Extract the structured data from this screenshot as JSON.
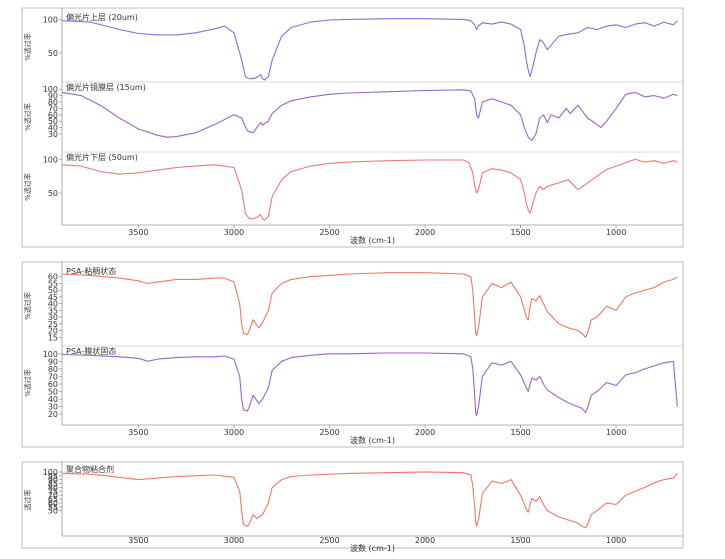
{
  "chart_data": [
    {
      "type": "line",
      "xlabel": "波数 (cm-1)",
      "xticks": [
        3500,
        3000,
        2500,
        2000,
        1500,
        1000
      ],
      "xlim": [
        3900,
        650
      ],
      "panels": [
        {
          "title": "偏光片上层 (20um)",
          "ylabel": "%透过率",
          "color": "#7777dd",
          "ylim": [
            10,
            105
          ],
          "yticks": [
            100,
            50
          ],
          "x": [
            3900,
            3750,
            3600,
            3500,
            3400,
            3300,
            3200,
            3100,
            3050,
            3000,
            2960,
            2940,
            2920,
            2900,
            2880,
            2860,
            2850,
            2840,
            2820,
            2800,
            2750,
            2700,
            2600,
            2500,
            2400,
            2200,
            2000,
            1800,
            1760,
            1740,
            1730,
            1720,
            1700,
            1650,
            1600,
            1550,
            1500,
            1480,
            1470,
            1460,
            1450,
            1440,
            1420,
            1400,
            1380,
            1360,
            1300,
            1250,
            1200,
            1150,
            1100,
            1050,
            1000,
            950,
            900,
            850,
            800,
            750,
            700,
            680
          ],
          "y": [
            98,
            96,
            85,
            79,
            77,
            77,
            80,
            86,
            90,
            80,
            40,
            15,
            12,
            12,
            14,
            18,
            12,
            10,
            15,
            40,
            75,
            88,
            96,
            99,
            100,
            101,
            101,
            100,
            98,
            92,
            85,
            90,
            95,
            93,
            96,
            93,
            85,
            60,
            40,
            25,
            15,
            25,
            50,
            70,
            65,
            55,
            75,
            78,
            80,
            88,
            85,
            90,
            92,
            88,
            93,
            95,
            90,
            96,
            92,
            98
          ]
        },
        {
          "title": "偏光片镜膜层 (15um)",
          "ylabel": "%透过率",
          "color": "#9966cc",
          "ylim": [
            5,
            105
          ],
          "yticks": [
            100,
            90,
            80,
            70,
            60,
            50,
            40,
            30
          ],
          "x": [
            3900,
            3800,
            3700,
            3600,
            3500,
            3400,
            3350,
            3300,
            3200,
            3100,
            3000,
            2960,
            2930,
            2900,
            2880,
            2860,
            2850,
            2820,
            2800,
            2750,
            2700,
            2600,
            2500,
            2400,
            2200,
            2000,
            1800,
            1760,
            1740,
            1730,
            1720,
            1700,
            1650,
            1600,
            1550,
            1500,
            1480,
            1460,
            1440,
            1420,
            1400,
            1380,
            1360,
            1340,
            1300,
            1260,
            1240,
            1200,
            1150,
            1100,
            1080,
            1050,
            1000,
            950,
            900,
            850,
            800,
            750,
            700,
            680
          ],
          "y": [
            95,
            90,
            75,
            55,
            38,
            28,
            25,
            26,
            32,
            45,
            60,
            55,
            35,
            32,
            40,
            48,
            44,
            50,
            62,
            75,
            82,
            88,
            92,
            94,
            96,
            98,
            99,
            97,
            85,
            60,
            55,
            80,
            85,
            80,
            75,
            60,
            40,
            25,
            20,
            30,
            55,
            60,
            48,
            60,
            55,
            70,
            62,
            75,
            55,
            45,
            40,
            50,
            70,
            92,
            95,
            88,
            90,
            86,
            92,
            90
          ]
        },
        {
          "title": "偏光片下层 (50um)",
          "ylabel": "%透过率",
          "color": "#ee7777",
          "ylim": [
            10,
            105
          ],
          "yticks": [
            100,
            50
          ],
          "x": [
            3900,
            3800,
            3700,
            3600,
            3500,
            3400,
            3300,
            3200,
            3100,
            3000,
            2960,
            2940,
            2920,
            2900,
            2880,
            2860,
            2850,
            2840,
            2820,
            2800,
            2750,
            2700,
            2600,
            2500,
            2400,
            2200,
            2000,
            1800,
            1770,
            1750,
            1740,
            1730,
            1720,
            1700,
            1650,
            1600,
            1550,
            1500,
            1480,
            1470,
            1460,
            1450,
            1440,
            1420,
            1400,
            1380,
            1360,
            1300,
            1250,
            1200,
            1150,
            1100,
            1050,
            1000,
            950,
            900,
            850,
            800,
            750,
            700,
            680
          ],
          "y": [
            92,
            90,
            82,
            78,
            80,
            84,
            88,
            90,
            92,
            88,
            55,
            20,
            12,
            12,
            14,
            18,
            12,
            10,
            15,
            45,
            70,
            82,
            90,
            94,
            96,
            98,
            99,
            99,
            95,
            80,
            60,
            50,
            55,
            80,
            86,
            84,
            80,
            70,
            50,
            35,
            25,
            20,
            30,
            50,
            60,
            55,
            60,
            65,
            70,
            55,
            65,
            75,
            85,
            90,
            95,
            100,
            96,
            98,
            94,
            98,
            96
          ]
        },
        {
          "title": "PSA-粘稠状态",
          "ylabel": "%透过率",
          "color": "#ee7766",
          "ylim": [
            10,
            65
          ],
          "yticks": [
            60,
            55,
            50,
            45,
            40,
            35,
            30,
            25,
            20,
            15
          ],
          "x": [
            3900,
            3750,
            3600,
            3500,
            3450,
            3400,
            3300,
            3200,
            3100,
            3050,
            3000,
            2970,
            2960,
            2950,
            2930,
            2920,
            2900,
            2880,
            2870,
            2850,
            2820,
            2800,
            2750,
            2700,
            2600,
            2500,
            2400,
            2200,
            2000,
            1800,
            1760,
            1750,
            1740,
            1735,
            1730,
            1720,
            1700,
            1650,
            1600,
            1550,
            1500,
            1470,
            1460,
            1450,
            1440,
            1420,
            1400,
            1380,
            1360,
            1300,
            1250,
            1200,
            1180,
            1160,
            1150,
            1130,
            1100,
            1050,
            1000,
            950,
            900,
            850,
            800,
            750,
            700,
            680
          ],
          "y": [
            62,
            61,
            59,
            57,
            55,
            56,
            58,
            58,
            59,
            59,
            56,
            40,
            25,
            18,
            17,
            20,
            28,
            24,
            22,
            26,
            35,
            48,
            55,
            58,
            60,
            61,
            62,
            63,
            63,
            62,
            60,
            50,
            30,
            18,
            16,
            22,
            45,
            55,
            52,
            56,
            45,
            30,
            28,
            38,
            44,
            42,
            46,
            40,
            34,
            25,
            22,
            20,
            18,
            15,
            18,
            28,
            30,
            38,
            35,
            45,
            48,
            50,
            52,
            56,
            58,
            60
          ]
        },
        {
          "title": "PSA-膜状固态",
          "ylabel": "%透过率",
          "color": "#9966cc",
          "ylim": [
            15,
            105
          ],
          "yticks": [
            100,
            90,
            80,
            70,
            60,
            50,
            40,
            30,
            20
          ],
          "x": [
            3900,
            3750,
            3600,
            3500,
            3450,
            3400,
            3300,
            3200,
            3100,
            3050,
            3000,
            2970,
            2960,
            2950,
            2930,
            2920,
            2900,
            2880,
            2870,
            2850,
            2820,
            2800,
            2750,
            2700,
            2600,
            2500,
            2400,
            2200,
            2000,
            1800,
            1760,
            1750,
            1740,
            1735,
            1730,
            1720,
            1700,
            1650,
            1600,
            1550,
            1500,
            1470,
            1460,
            1450,
            1440,
            1420,
            1400,
            1380,
            1360,
            1300,
            1250,
            1200,
            1180,
            1160,
            1150,
            1130,
            1100,
            1050,
            1000,
            950,
            900,
            850,
            800,
            750,
            700,
            680
          ],
          "y": [
            99,
            98,
            96,
            94,
            90,
            93,
            95,
            96,
            96,
            97,
            93,
            70,
            40,
            26,
            24,
            30,
            45,
            38,
            34,
            40,
            55,
            78,
            90,
            95,
            98,
            100,
            100,
            101,
            101,
            100,
            96,
            80,
            45,
            22,
            18,
            30,
            70,
            88,
            85,
            90,
            72,
            55,
            50,
            60,
            68,
            65,
            70,
            60,
            52,
            42,
            35,
            30,
            28,
            22,
            28,
            45,
            50,
            62,
            58,
            72,
            75,
            80,
            84,
            88,
            90,
            30
          ]
        },
        {
          "title": "聚合物粘合剂",
          "ylabel": "透过率",
          "color": "#ee7766",
          "ylim": [
            20,
            105
          ],
          "yticks": [
            100,
            95,
            90,
            85,
            80,
            75,
            70,
            65,
            60,
            55,
            50
          ],
          "x": [
            3900,
            3750,
            3600,
            3500,
            3400,
            3300,
            3200,
            3100,
            3000,
            2970,
            2960,
            2950,
            2930,
            2920,
            2900,
            2880,
            2850,
            2820,
            2800,
            2750,
            2700,
            2600,
            2500,
            2400,
            2200,
            2000,
            1800,
            1760,
            1750,
            1740,
            1735,
            1730,
            1720,
            1700,
            1650,
            1600,
            1550,
            1500,
            1470,
            1460,
            1450,
            1440,
            1420,
            1400,
            1380,
            1360,
            1300,
            1250,
            1200,
            1180,
            1160,
            1150,
            1130,
            1100,
            1050,
            1000,
            950,
            900,
            850,
            800,
            750,
            700,
            680
          ],
          "y": [
            98,
            97,
            93,
            90,
            92,
            94,
            95,
            96,
            93,
            75,
            50,
            32,
            30,
            33,
            45,
            40,
            45,
            60,
            80,
            90,
            94,
            96,
            97,
            98,
            99,
            100,
            99,
            96,
            82,
            55,
            35,
            30,
            38,
            72,
            88,
            85,
            90,
            70,
            52,
            48,
            58,
            66,
            62,
            68,
            58,
            50,
            42,
            38,
            34,
            30,
            28,
            32,
            45,
            50,
            60,
            58,
            70,
            75,
            80,
            86,
            90,
            92,
            98
          ]
        }
      ]
    }
  ]
}
